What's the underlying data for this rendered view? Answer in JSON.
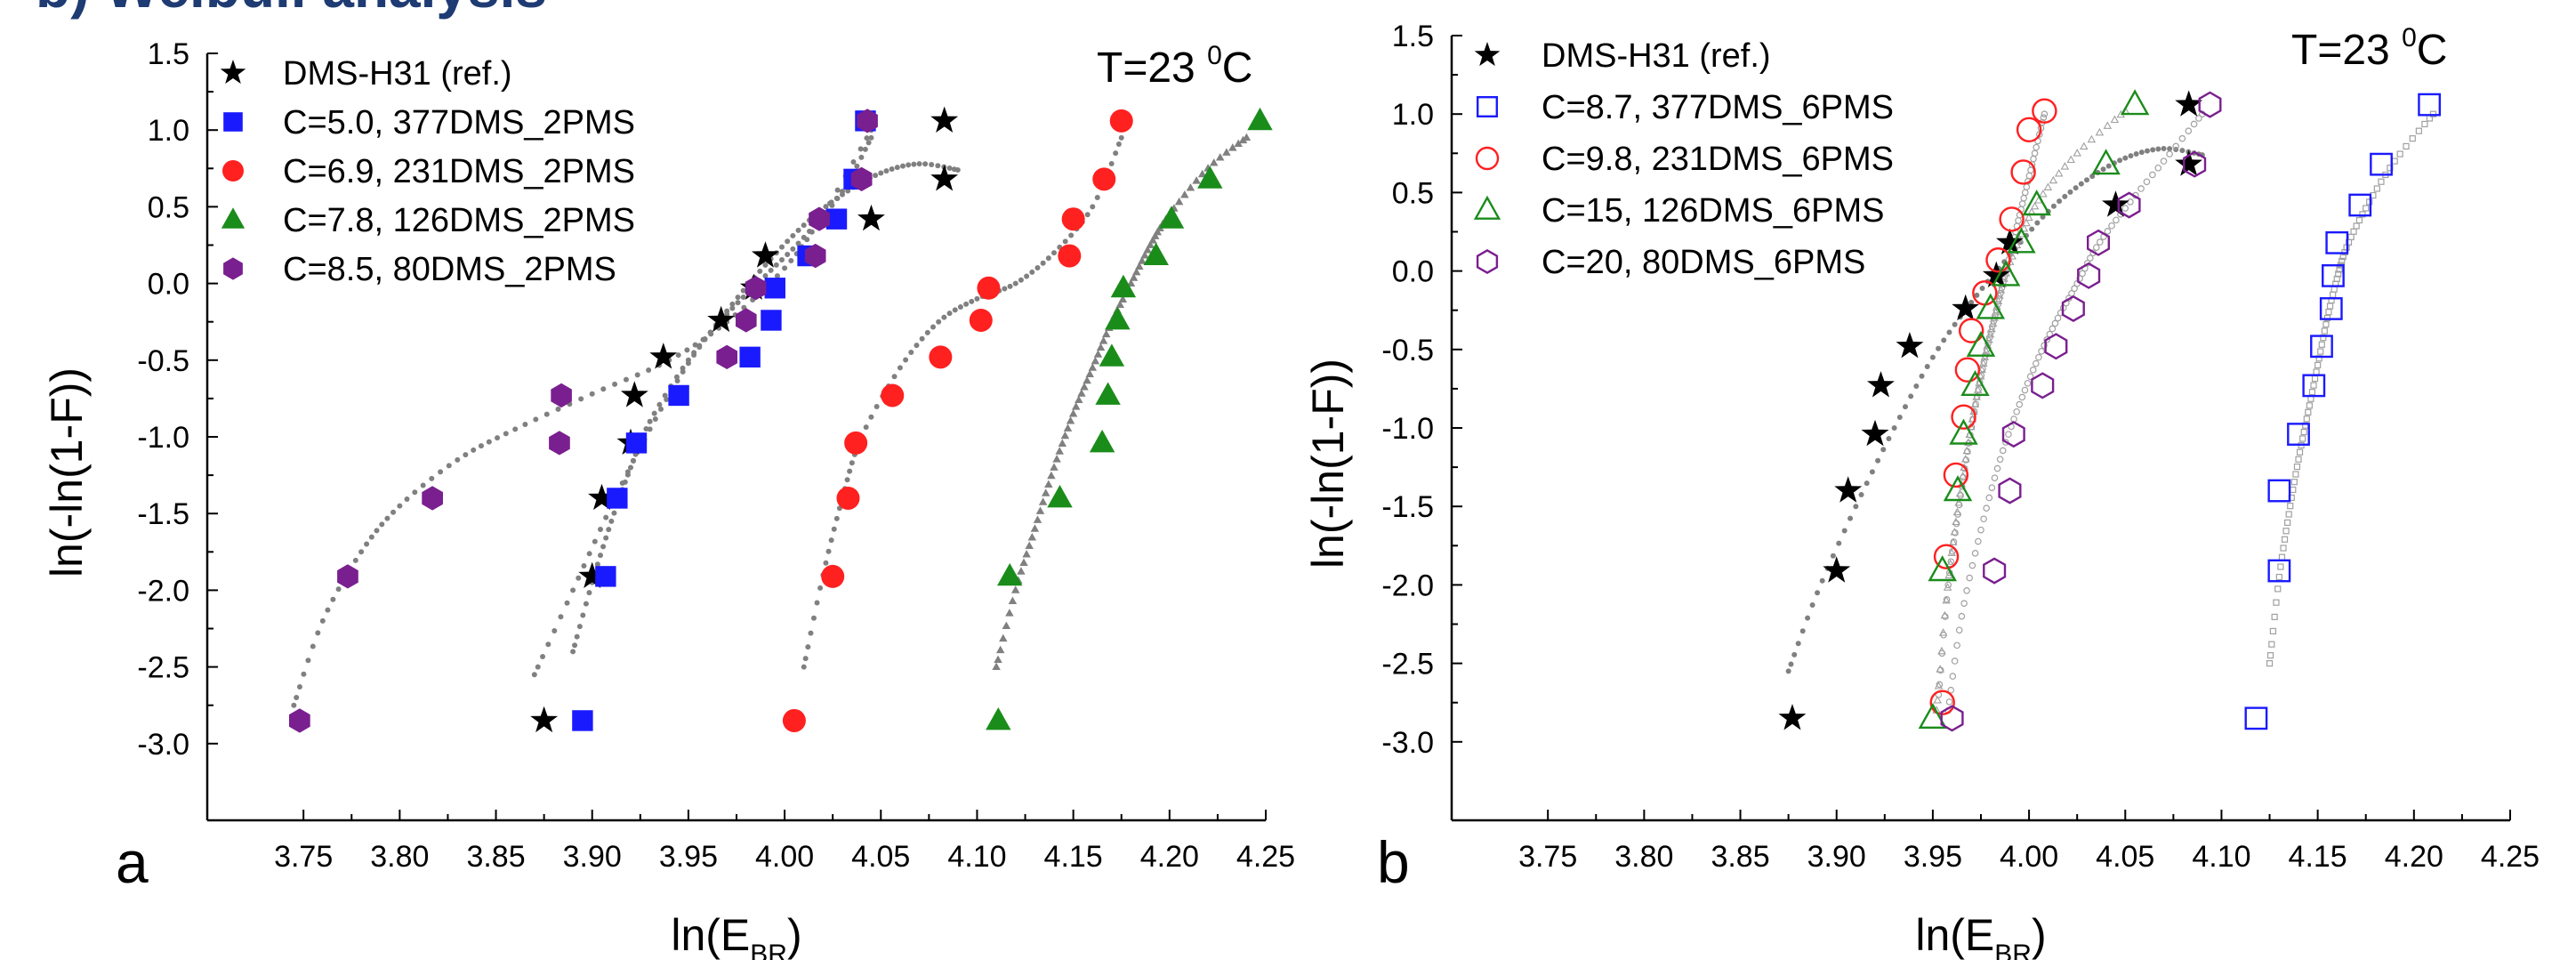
{
  "header": {
    "text": "b) Weibull analysis"
  },
  "chart_data": [
    {
      "type": "scatter",
      "panel_label": "a",
      "annotation": {
        "text": "T=23 ",
        "sup": "0",
        "unit": "C"
      },
      "xlabel": {
        "main": "ln(E",
        "sub": "BR",
        "close": ")"
      },
      "ylabel": "ln(-ln(1-F))",
      "xlim": [
        3.7,
        4.25
      ],
      "ylim": [
        -3.5,
        1.5
      ],
      "xticks": [
        "3.75",
        "3.80",
        "3.85",
        "3.90",
        "3.95",
        "4.00",
        "4.05",
        "4.10",
        "4.15",
        "4.20",
        "4.25"
      ],
      "yticks": [
        "-3.0",
        "-2.5",
        "-2.0",
        "-1.5",
        "-1.0",
        "-0.5",
        "0.0",
        "0.5",
        "1.0",
        "1.5"
      ],
      "grid": false,
      "legend_position": "top-left",
      "series": [
        {
          "name": "DMS-H31 (ref.)",
          "marker": "star",
          "filled": true,
          "color": "#000000",
          "x": [
            3.875,
            3.9,
            3.905,
            3.92,
            3.922,
            3.937,
            3.967,
            3.984,
            3.99,
            4.045,
            4.083,
            4.083
          ],
          "y": [
            -2.85,
            -1.91,
            -1.4,
            -1.04,
            -0.73,
            -0.48,
            -0.24,
            -0.03,
            0.18,
            0.42,
            0.68,
            1.06
          ],
          "fit": {
            "color": "#808080",
            "marker": "dot",
            "x": [
              3.87,
              3.89,
              3.91,
              3.93,
              3.95,
              3.97,
              3.99,
              4.01,
              4.03,
              4.05,
              4.07,
              4.09
            ],
            "y": [
              -2.55,
              -2.0,
              -1.45,
              -0.95,
              -0.52,
              -0.18,
              0.12,
              0.38,
              0.58,
              0.72,
              0.78,
              0.74
            ]
          }
        },
        {
          "name": "C=5.0, 377DMS_2PMS",
          "marker": "square",
          "filled": true,
          "color": "#1a1aff",
          "x": [
            3.895,
            3.907,
            3.913,
            3.923,
            3.945,
            3.982,
            3.993,
            3.995,
            4.012,
            4.027,
            4.036,
            4.042
          ],
          "y": [
            -2.85,
            -1.91,
            -1.4,
            -1.04,
            -0.73,
            -0.48,
            -0.24,
            -0.03,
            0.18,
            0.42,
            0.68,
            1.06
          ],
          "fit": {
            "color": "#808080",
            "marker": "dot",
            "x": [
              3.89,
              3.9,
              3.91,
              3.92,
              3.93,
              3.95,
              3.97,
              3.99,
              4.01,
              4.03,
              4.045
            ],
            "y": [
              -2.4,
              -1.95,
              -1.55,
              -1.2,
              -0.9,
              -0.5,
              -0.2,
              0.05,
              0.3,
              0.6,
              0.95
            ]
          }
        },
        {
          "name": "C=6.9, 231DMS_2PMS",
          "marker": "circle",
          "filled": true,
          "color": "#ff2020",
          "x": [
            4.005,
            4.025,
            4.033,
            4.037,
            4.056,
            4.081,
            4.102,
            4.106,
            4.148,
            4.15,
            4.166,
            4.175
          ],
          "y": [
            -2.85,
            -1.91,
            -1.4,
            -1.04,
            -0.73,
            -0.48,
            -0.24,
            -0.03,
            0.18,
            0.42,
            0.68,
            1.06
          ],
          "fit": {
            "color": "#808080",
            "marker": "dot",
            "x": [
              4.01,
              4.02,
              4.03,
              4.04,
              4.06,
              4.08,
              4.1,
              4.12,
              4.14,
              4.16,
              4.175
            ],
            "y": [
              -2.5,
              -1.9,
              -1.4,
              -1.0,
              -0.55,
              -0.25,
              -0.1,
              0.0,
              0.2,
              0.5,
              0.95
            ]
          }
        },
        {
          "name": "C=7.8, 126DMS_2PMS",
          "marker": "triangle",
          "filled": true,
          "color": "#1a8c1a",
          "x": [
            4.111,
            4.117,
            4.143,
            4.165,
            4.168,
            4.17,
            4.173,
            4.176,
            4.193,
            4.201,
            4.221,
            4.247
          ],
          "y": [
            -2.85,
            -1.91,
            -1.4,
            -1.04,
            -0.73,
            -0.48,
            -0.24,
            -0.03,
            0.18,
            0.42,
            0.68,
            1.06
          ],
          "fit": {
            "color": "#808080",
            "marker": "triangle-small",
            "x": [
              4.11,
              4.12,
              4.13,
              4.14,
              4.15,
              4.16,
              4.17,
              4.18,
              4.19,
              4.2,
              4.22,
              4.24
            ],
            "y": [
              -2.5,
              -2.0,
              -1.6,
              -1.2,
              -0.85,
              -0.55,
              -0.25,
              0.0,
              0.25,
              0.45,
              0.75,
              0.95
            ]
          }
        },
        {
          "name": "C=8.5, 80DMS_2PMS",
          "marker": "hexagon",
          "filled": true,
          "color": "#7a1f8f",
          "x": [
            3.748,
            3.773,
            3.817,
            3.883,
            3.884,
            3.97,
            3.98,
            3.985,
            4.016,
            4.018,
            4.04,
            4.043
          ],
          "y": [
            -2.85,
            -1.91,
            -1.4,
            -1.04,
            -0.73,
            -0.48,
            -0.24,
            -0.03,
            0.18,
            0.42,
            0.68,
            1.06
          ],
          "fit": {
            "color": "#808080",
            "marker": "dot",
            "x": [
              3.745,
              3.76,
              3.78,
              3.8,
              3.83,
              3.86,
              3.9,
              3.94,
              3.97,
              4.0,
              4.02,
              4.045
            ],
            "y": [
              -2.75,
              -2.2,
              -1.75,
              -1.45,
              -1.15,
              -0.95,
              -0.72,
              -0.5,
              -0.25,
              0.1,
              0.45,
              1.0
            ]
          }
        }
      ]
    },
    {
      "type": "scatter",
      "panel_label": "b",
      "annotation": {
        "text": "T=23 ",
        "sup": "0",
        "unit": "C"
      },
      "xlabel": {
        "main": "ln(E",
        "sub": "BR",
        "close": ")"
      },
      "ylabel": "ln(-ln(1-F))",
      "xlim": [
        3.7,
        4.25
      ],
      "ylim": [
        -3.5,
        1.5
      ],
      "xticks": [
        "3.75",
        "3.80",
        "3.85",
        "3.90",
        "3.95",
        "4.00",
        "4.05",
        "4.10",
        "4.15",
        "4.20",
        "4.25"
      ],
      "yticks": [
        "-3.0",
        "-2.5",
        "-2.0",
        "-1.5",
        "-1.0",
        "-0.5",
        "0.0",
        "0.5",
        "1.0",
        "1.5"
      ],
      "grid": false,
      "legend_position": "top-left",
      "series": [
        {
          "name": "DMS-H31 (ref.)",
          "marker": "star",
          "filled": true,
          "color": "#000000",
          "x": [
            3.877,
            3.9,
            3.906,
            3.92,
            3.923,
            3.938,
            3.967,
            3.983,
            3.99,
            4.045,
            4.083,
            4.083
          ],
          "y": [
            -2.85,
            -1.91,
            -1.4,
            -1.04,
            -0.73,
            -0.48,
            -0.24,
            -0.03,
            0.18,
            0.42,
            0.68,
            1.06
          ],
          "fit": {
            "color": "#808080",
            "marker": "dot",
            "x": [
              3.875,
              3.89,
              3.91,
              3.93,
              3.95,
              3.97,
              3.99,
              4.01,
              4.03,
              4.05,
              4.07,
              4.09
            ],
            "y": [
              -2.55,
              -2.05,
              -1.5,
              -1.0,
              -0.55,
              -0.2,
              0.1,
              0.38,
              0.58,
              0.72,
              0.78,
              0.74
            ]
          }
        },
        {
          "name": "C=8.7, 377DMS_6PMS",
          "marker": "square",
          "filled": false,
          "color": "#1a1aff",
          "x": [
            4.118,
            4.13,
            4.13,
            4.14,
            4.148,
            4.152,
            4.157,
            4.158,
            4.16,
            4.172,
            4.183,
            4.208
          ],
          "y": [
            -2.85,
            -1.91,
            -1.4,
            -1.04,
            -0.73,
            -0.48,
            -0.24,
            -0.03,
            0.18,
            0.42,
            0.68,
            1.06
          ],
          "fit": {
            "color": "#a0a0a0",
            "marker": "square-small",
            "x": [
              4.125,
              4.13,
              4.135,
              4.14,
              4.145,
              4.15,
              4.155,
              4.16,
              4.165,
              4.175,
              4.19,
              4.21
            ],
            "y": [
              -2.5,
              -1.95,
              -1.55,
              -1.2,
              -0.9,
              -0.6,
              -0.3,
              -0.05,
              0.15,
              0.4,
              0.7,
              1.0
            ]
          }
        },
        {
          "name": "C=9.8, 231DMS_6PMS",
          "marker": "circle",
          "filled": false,
          "color": "#ff2020",
          "x": [
            3.955,
            3.957,
            3.962,
            3.966,
            3.968,
            3.97,
            3.977,
            3.984,
            3.991,
            3.997,
            4.0,
            4.008
          ],
          "y": [
            -2.75,
            -1.82,
            -1.3,
            -0.93,
            -0.63,
            -0.38,
            -0.14,
            0.07,
            0.33,
            0.63,
            0.9,
            1.02
          ],
          "fit": {
            "color": "#a0a0a0",
            "marker": "circle-small",
            "x": [
              3.953,
              3.958,
              3.963,
              3.968,
              3.973,
              3.978,
              3.983,
              3.988,
              3.993,
              3.998,
              4.003,
              4.008
            ],
            "y": [
              -2.7,
              -2.0,
              -1.55,
              -1.15,
              -0.8,
              -0.5,
              -0.25,
              0.0,
              0.25,
              0.5,
              0.75,
              1.0
            ]
          }
        },
        {
          "name": "C=15, 126DMS_6PMS",
          "marker": "triangle",
          "filled": false,
          "color": "#1a8c1a",
          "x": [
            3.95,
            3.955,
            3.963,
            3.966,
            3.972,
            3.975,
            3.98,
            3.988,
            3.996,
            4.004,
            4.04,
            4.055
          ],
          "y": [
            -2.85,
            -1.91,
            -1.4,
            -1.04,
            -0.73,
            -0.48,
            -0.24,
            -0.03,
            0.18,
            0.42,
            0.68,
            1.06
          ],
          "fit": {
            "color": "#a0a0a0",
            "marker": "triangle-small",
            "x": [
              3.952,
              3.957,
              3.962,
              3.967,
              3.972,
              3.977,
              3.982,
              3.987,
              3.995,
              4.005,
              4.025,
              4.05
            ],
            "y": [
              -2.8,
              -2.1,
              -1.6,
              -1.2,
              -0.85,
              -0.55,
              -0.3,
              -0.05,
              0.2,
              0.45,
              0.75,
              1.02
            ]
          }
        },
        {
          "name": "C=20, 80DMS_6PMS",
          "marker": "hexagon",
          "filled": false,
          "color": "#7a1f8f",
          "x": [
            3.96,
            3.982,
            3.99,
            3.992,
            4.007,
            4.014,
            4.023,
            4.031,
            4.036,
            4.052,
            4.086,
            4.094
          ],
          "y": [
            -2.85,
            -1.91,
            -1.4,
            -1.04,
            -0.73,
            -0.48,
            -0.24,
            -0.03,
            0.18,
            0.42,
            0.68,
            1.06
          ],
          "fit": {
            "color": "#a0a0a0",
            "marker": "circle-small",
            "x": [
              3.958,
              3.965,
              3.975,
              3.985,
              3.995,
              4.005,
              4.015,
              4.025,
              4.035,
              4.05,
              4.07,
              4.09
            ],
            "y": [
              -2.8,
              -2.2,
              -1.65,
              -1.2,
              -0.85,
              -0.55,
              -0.3,
              -0.08,
              0.15,
              0.4,
              0.7,
              1.0
            ]
          }
        }
      ]
    }
  ]
}
